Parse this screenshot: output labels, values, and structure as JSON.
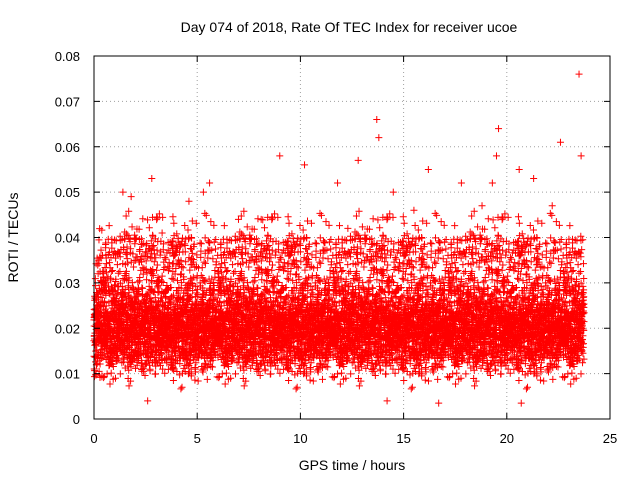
{
  "chart_data": {
    "type": "scatter",
    "title": "Day 074 of 2018, Rate Of TEC Index for receiver ucoe",
    "xlabel": "GPS time / hours",
    "ylabel": "ROTI / TECUs",
    "xlim": [
      0,
      25
    ],
    "ylim": [
      0,
      0.08
    ],
    "xticks": [
      0,
      5,
      10,
      15,
      20,
      25
    ],
    "yticks": [
      0,
      0.01,
      0.02,
      0.03,
      0.04,
      0.05,
      0.06,
      0.07,
      0.08
    ],
    "xtick_labels": [
      "0",
      "5",
      "10",
      "15",
      "20",
      "25"
    ],
    "ytick_labels": [
      "0",
      "0.01",
      "0.02",
      "0.03",
      "0.04",
      "0.05",
      "0.06",
      "0.07",
      "0.08"
    ],
    "grid": true,
    "marker": "+",
    "series_color": "#ff0000",
    "series": [
      {
        "name": "ROTI",
        "x_range": [
          0,
          23.75
        ],
        "sample_interval_hours": 0.01,
        "typical_range": [
          0.005,
          0.035
        ],
        "notable_points": [
          {
            "x": 23.5,
            "y": 0.076
          },
          {
            "x": 13.7,
            "y": 0.066
          },
          {
            "x": 19.6,
            "y": 0.064
          },
          {
            "x": 22.6,
            "y": 0.061
          },
          {
            "x": 13.8,
            "y": 0.062
          },
          {
            "x": 9.0,
            "y": 0.058
          },
          {
            "x": 10.2,
            "y": 0.056
          },
          {
            "x": 12.8,
            "y": 0.057
          },
          {
            "x": 23.6,
            "y": 0.058
          },
          {
            "x": 19.5,
            "y": 0.058
          },
          {
            "x": 2.8,
            "y": 0.053
          },
          {
            "x": 5.6,
            "y": 0.052
          },
          {
            "x": 16.2,
            "y": 0.055
          },
          {
            "x": 1.4,
            "y": 0.05
          },
          {
            "x": 1.8,
            "y": 0.049
          },
          {
            "x": 4.6,
            "y": 0.048
          },
          {
            "x": 5.3,
            "y": 0.05
          },
          {
            "x": 11.8,
            "y": 0.052
          },
          {
            "x": 14.5,
            "y": 0.05
          },
          {
            "x": 17.8,
            "y": 0.052
          },
          {
            "x": 19.3,
            "y": 0.052
          },
          {
            "x": 20.6,
            "y": 0.055
          },
          {
            "x": 21.3,
            "y": 0.053
          },
          {
            "x": 7.0,
            "y": 0.044
          },
          {
            "x": 8.1,
            "y": 0.044
          },
          {
            "x": 15.5,
            "y": 0.046
          },
          {
            "x": 18.8,
            "y": 0.047
          },
          {
            "x": 22.2,
            "y": 0.047
          },
          {
            "x": 3.3,
            "y": 0.041
          },
          {
            "x": 12.3,
            "y": 0.042
          },
          {
            "x": 0.2,
            "y": 0.032
          },
          {
            "x": 16.7,
            "y": 0.0035
          },
          {
            "x": 20.7,
            "y": 0.0035
          },
          {
            "x": 2.6,
            "y": 0.004
          },
          {
            "x": 14.2,
            "y": 0.004
          }
        ]
      }
    ]
  }
}
